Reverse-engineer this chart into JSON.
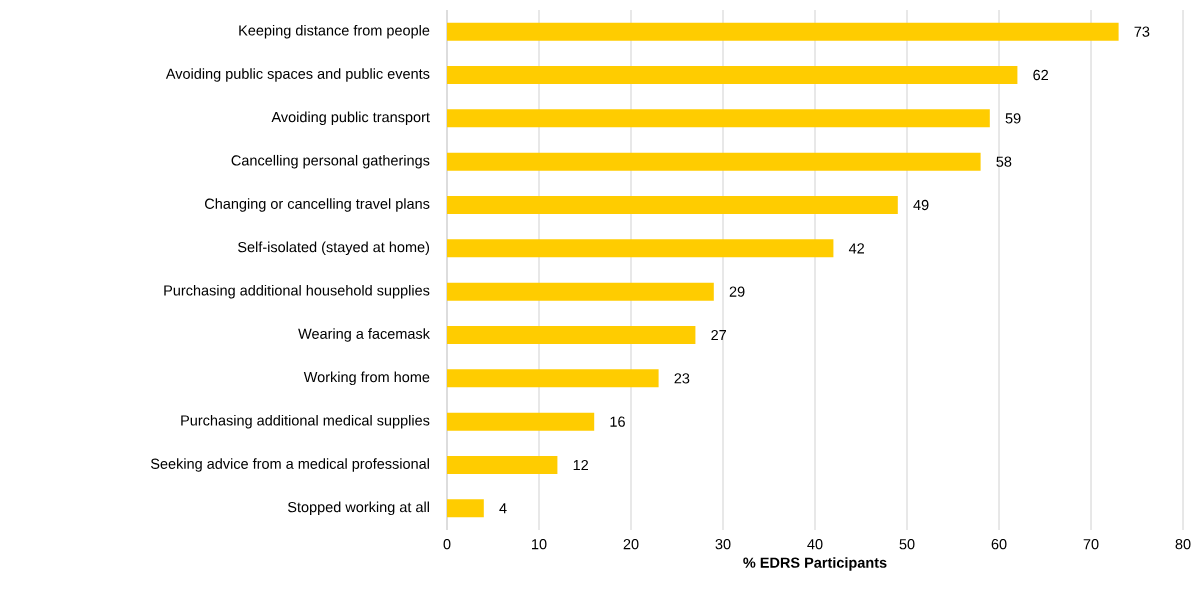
{
  "chart_data": {
    "type": "bar",
    "orientation": "horizontal",
    "xlabel": "% EDRS Participants",
    "categories": [
      "Keeping distance from people",
      "Avoiding public spaces and public events",
      "Avoiding public transport",
      "Cancelling personal gatherings",
      "Changing or cancelling travel plans",
      "Self-isolated (stayed at home)",
      "Purchasing additional household supplies",
      "Wearing a facemask",
      "Working from home",
      "Purchasing additional medical supplies",
      "Seeking advice from a medical professional",
      "Stopped working at all"
    ],
    "values": [
      73,
      62,
      59,
      58,
      49,
      42,
      29,
      27,
      23,
      16,
      12,
      4
    ],
    "color": "#ffcc00",
    "xlim": [
      0,
      80
    ],
    "xticks": [
      0,
      10,
      20,
      30,
      40,
      50,
      60,
      70,
      80
    ],
    "grid": "x",
    "data_labels": true
  }
}
